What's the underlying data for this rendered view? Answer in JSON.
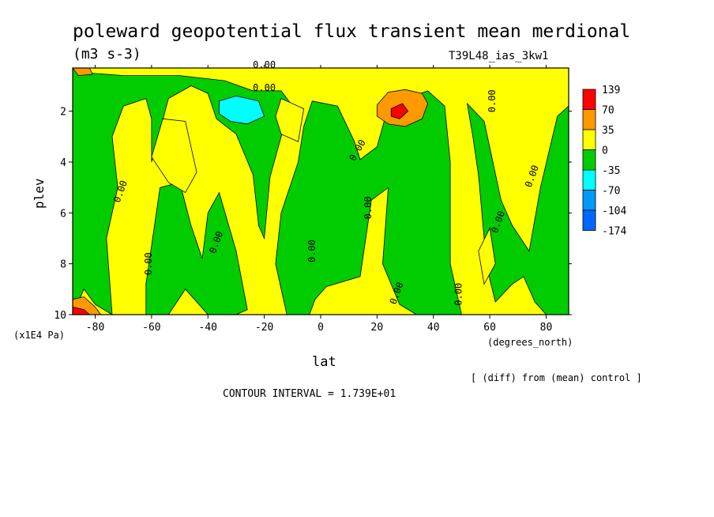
{
  "chart_data": {
    "type": "heatmap",
    "title": "poleward geopotential flux transient mean merdional",
    "units": "(m3 s-3)",
    "run_label": "T39L48_ias_3kw1",
    "xlabel": "lat",
    "x_units": "(degrees_north)",
    "ylabel": "plev",
    "y_units": "(x1E4 Pa)",
    "xlim": [
      -88,
      88
    ],
    "ylim": [
      0.3,
      10
    ],
    "y_inverted": true,
    "x_ticks": [
      -80,
      -60,
      -40,
      -20,
      0,
      20,
      40,
      60,
      80
    ],
    "x_tick_labels": [
      "-80",
      "-60",
      "-40",
      "-20",
      "0",
      "20",
      "40",
      "60",
      "80"
    ],
    "y_ticks": [
      2,
      4,
      6,
      8,
      10
    ],
    "y_tick_labels": [
      "2",
      "4",
      "6",
      "8",
      "10"
    ],
    "colorbar": {
      "labels": [
        "139",
        "70",
        "35",
        "0",
        "-35",
        "-70",
        "-104",
        "-174"
      ],
      "colors": [
        "#ff0000",
        "#ff9900",
        "#ffff00",
        "#00cc00",
        "#00ffff",
        "#0099ff",
        "#0066ff"
      ]
    },
    "fill_colors": {
      "pos_high": "#ff0000",
      "pos_mid": "#ff9900",
      "pos_low": "#ffff00",
      "neg_low": "#00cc00",
      "neg_mid": "#00ffff"
    },
    "contour_label": "0.00",
    "contour_interval_text": "CONTOUR INTERVAL = 1.739E+01",
    "comparison_text": "[ (diff) from (mean) control ]",
    "green_regions": [
      {
        "name": "south-edge",
        "points": [
          [
            -88,
            0.3
          ],
          [
            -88,
            10
          ],
          [
            -84,
            9
          ],
          [
            -80,
            9.6
          ],
          [
            -74,
            10
          ],
          [
            -76,
            7
          ],
          [
            -72,
            5
          ],
          [
            -74,
            3
          ],
          [
            -70,
            1.8
          ],
          [
            -62,
            1.5
          ],
          [
            -60,
            2.3
          ],
          [
            -60,
            4
          ],
          [
            -54,
            1.5
          ],
          [
            -46,
            1
          ],
          [
            -40,
            1.3
          ],
          [
            -37,
            2.3
          ],
          [
            -30,
            2.9
          ],
          [
            -24,
            4.5
          ],
          [
            -22,
            6.5
          ],
          [
            -20,
            7
          ],
          [
            -19,
            5.8
          ],
          [
            -18,
            4.6
          ],
          [
            -14,
            3
          ],
          [
            -10,
            1.8
          ],
          [
            -14,
            1.2
          ],
          [
            -24,
            1.2
          ],
          [
            -34,
            0.8
          ],
          [
            -50,
            0.6
          ],
          [
            -70,
            0.6
          ],
          [
            -82,
            0.5
          ]
        ]
      },
      {
        "name": "south-mid",
        "points": [
          [
            -62,
            8.8
          ],
          [
            -57,
            5
          ],
          [
            -50,
            4.8
          ],
          [
            -46,
            6.5
          ],
          [
            -42,
            7.8
          ],
          [
            -40,
            6
          ],
          [
            -36,
            5.2
          ],
          [
            -30,
            7.5
          ],
          [
            -26,
            9.8
          ],
          [
            -30,
            10
          ],
          [
            -40,
            10
          ],
          [
            -48,
            9
          ],
          [
            -54,
            10
          ],
          [
            -62,
            10
          ]
        ]
      },
      {
        "name": "tropical-upper",
        "points": [
          [
            -3,
            1.6
          ],
          [
            6,
            1.8
          ],
          [
            12,
            3.2
          ],
          [
            14,
            3.9
          ],
          [
            20,
            3.4
          ],
          [
            23,
            2.2
          ],
          [
            30,
            1.5
          ],
          [
            38,
            1.2
          ],
          [
            44,
            1.8
          ],
          [
            46,
            4
          ],
          [
            46,
            8
          ],
          [
            50,
            10
          ],
          [
            34,
            10
          ],
          [
            28,
            9.6
          ],
          [
            22,
            8
          ],
          [
            24,
            5
          ],
          [
            18,
            5.5
          ],
          [
            16,
            7
          ],
          [
            14,
            8.5
          ],
          [
            2,
            8.9
          ],
          [
            -2,
            9.4
          ],
          [
            -4,
            10
          ],
          [
            -12,
            10
          ],
          [
            -16,
            8
          ],
          [
            -14,
            6
          ],
          [
            -8,
            4
          ],
          [
            -6,
            2.6
          ]
        ]
      },
      {
        "name": "north-edge",
        "points": [
          [
            52,
            1.7
          ],
          [
            58,
            2.4
          ],
          [
            64,
            5.5
          ],
          [
            68,
            6.5
          ],
          [
            74,
            7.5
          ],
          [
            78,
            5
          ],
          [
            84,
            2.2
          ],
          [
            88,
            1.8
          ],
          [
            88,
            10
          ],
          [
            80,
            10
          ],
          [
            76,
            9.5
          ],
          [
            72,
            8.5
          ],
          [
            68,
            8.8
          ],
          [
            62,
            9.5
          ],
          [
            60,
            8.6
          ],
          [
            58,
            7
          ],
          [
            56,
            4.5
          ],
          [
            54,
            3
          ]
        ]
      }
    ],
    "yellow_islands": [
      {
        "name": "island-a",
        "points": [
          [
            -56,
            2.3
          ],
          [
            -48,
            2.4
          ],
          [
            -44,
            4.4
          ],
          [
            -48,
            5.2
          ],
          [
            -54,
            4.8
          ],
          [
            -60,
            3.8
          ]
        ]
      },
      {
        "name": "island-b",
        "points": [
          [
            -14,
            1.5
          ],
          [
            -6,
            1.9
          ],
          [
            -8,
            3.2
          ],
          [
            -14,
            2.9
          ],
          [
            -16,
            2.2
          ]
        ]
      },
      {
        "name": "island-c",
        "points": [
          [
            56,
            7.5
          ],
          [
            60,
            6.6
          ],
          [
            62,
            8
          ],
          [
            58,
            8.8
          ]
        ]
      }
    ],
    "orange_regions": [
      {
        "name": "south-corner",
        "points": [
          [
            -88,
            9.4
          ],
          [
            -84,
            9.3
          ],
          [
            -80,
            9.7
          ],
          [
            -78,
            10
          ],
          [
            -88,
            10
          ]
        ]
      },
      {
        "name": "north-top",
        "points": [
          [
            -88,
            0.3
          ],
          [
            -82,
            0.3
          ],
          [
            -81,
            0.55
          ],
          [
            -86,
            0.6
          ]
        ]
      },
      {
        "name": "mid-lat-peak",
        "points": [
          [
            20,
            1.75
          ],
          [
            24,
            1.25
          ],
          [
            30,
            1.15
          ],
          [
            36,
            1.3
          ],
          [
            38,
            1.7
          ],
          [
            36,
            2.3
          ],
          [
            30,
            2.6
          ],
          [
            24,
            2.5
          ],
          [
            20,
            2.2
          ]
        ]
      }
    ],
    "red_regions": [
      {
        "name": "south-corner",
        "points": [
          [
            -88,
            9.7
          ],
          [
            -84,
            9.8
          ],
          [
            -82,
            10
          ],
          [
            -88,
            10
          ]
        ]
      },
      {
        "name": "mid-lat-peak",
        "points": [
          [
            25,
            1.9
          ],
          [
            29,
            1.7
          ],
          [
            31,
            2.0
          ],
          [
            28,
            2.3
          ],
          [
            25,
            2.2
          ]
        ]
      }
    ],
    "cyan_regions": [
      {
        "name": "southern-trough",
        "points": [
          [
            -36,
            1.6
          ],
          [
            -30,
            1.4
          ],
          [
            -22,
            1.6
          ],
          [
            -20,
            2.2
          ],
          [
            -26,
            2.5
          ],
          [
            -32,
            2.4
          ],
          [
            -36,
            2.1
          ]
        ]
      }
    ]
  }
}
